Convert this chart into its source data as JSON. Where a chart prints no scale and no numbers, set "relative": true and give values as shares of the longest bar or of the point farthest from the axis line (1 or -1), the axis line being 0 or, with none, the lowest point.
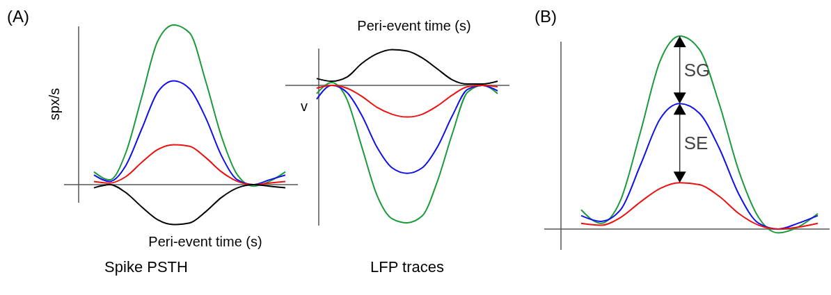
{
  "chart_data": [
    {
      "type": "line",
      "title": "Spike PSTH",
      "xlabel": "Peri-event time (s)",
      "ylabel": "spx/s",
      "relative": true,
      "annotations": [
        "(A)"
      ],
      "categories": [
        null,
        null,
        null,
        null,
        null,
        null,
        null,
        null,
        null,
        null,
        null,
        null,
        null
      ],
      "series": [
        {
          "color": "#1a9a3a",
          "values": [
            0.08,
            0.03,
            0.2,
            0.55,
            0.9,
            1.0,
            0.95,
            0.65,
            0.3,
            0.06,
            -0.01,
            0.02,
            0.08
          ]
        },
        {
          "color": "#1010ee",
          "values": [
            0.06,
            0.02,
            0.12,
            0.35,
            0.58,
            0.65,
            0.6,
            0.42,
            0.18,
            0.03,
            0.0,
            0.03,
            0.06
          ]
        },
        {
          "color": "#ee1010",
          "values": [
            0.02,
            0.01,
            0.05,
            0.14,
            0.22,
            0.25,
            0.24,
            0.17,
            0.08,
            0.02,
            0.0,
            0.01,
            0.02
          ]
        },
        {
          "color": "#000000",
          "values": [
            -0.02,
            0.0,
            -0.05,
            -0.14,
            -0.22,
            -0.25,
            -0.24,
            -0.17,
            -0.08,
            -0.02,
            0.0,
            -0.01,
            -0.02
          ]
        }
      ]
    },
    {
      "type": "line",
      "title": "LFP traces",
      "xlabel": "Peri-event time (s)",
      "ylabel": "v",
      "relative": true,
      "categories": [
        null,
        null,
        null,
        null,
        null,
        null,
        null,
        null,
        null,
        null,
        null,
        null,
        null
      ],
      "series": [
        {
          "color": "#1a9a3a",
          "values": [
            -0.06,
            0.02,
            -0.1,
            -0.45,
            -0.8,
            -0.97,
            -1.0,
            -0.95,
            -0.7,
            -0.35,
            -0.05,
            0.0,
            -0.06
          ]
        },
        {
          "color": "#1010ee",
          "values": [
            -0.1,
            0.0,
            -0.05,
            -0.22,
            -0.45,
            -0.6,
            -0.64,
            -0.6,
            -0.45,
            -0.22,
            -0.03,
            0.0,
            -0.04
          ]
        },
        {
          "color": "#ee1010",
          "values": [
            -0.02,
            0.0,
            -0.02,
            -0.08,
            -0.16,
            -0.21,
            -0.23,
            -0.21,
            -0.15,
            -0.07,
            -0.01,
            0.0,
            -0.01
          ]
        },
        {
          "color": "#000000",
          "values": [
            0.05,
            0.03,
            0.06,
            0.16,
            0.23,
            0.26,
            0.25,
            0.2,
            0.12,
            0.04,
            0.01,
            0.01,
            0.03
          ]
        }
      ]
    },
    {
      "type": "line",
      "relative": true,
      "annotations": [
        "(B)",
        "SG",
        "SE"
      ],
      "categories": [
        null,
        null,
        null,
        null,
        null,
        null,
        null,
        null,
        null,
        null,
        null,
        null,
        null
      ],
      "series": [
        {
          "color": "#1a9a3a",
          "values": [
            0.1,
            0.03,
            0.15,
            0.5,
            0.87,
            1.0,
            0.93,
            0.65,
            0.3,
            0.06,
            -0.02,
            0.01,
            0.08
          ]
        },
        {
          "color": "#1010ee",
          "values": [
            0.07,
            0.04,
            0.1,
            0.33,
            0.57,
            0.65,
            0.6,
            0.42,
            0.18,
            0.03,
            0.0,
            0.03,
            0.07
          ]
        },
        {
          "color": "#ee1010",
          "values": [
            0.03,
            0.02,
            0.06,
            0.14,
            0.21,
            0.24,
            0.23,
            0.17,
            0.08,
            0.02,
            0.0,
            0.01,
            0.03
          ]
        }
      ]
    }
  ]
}
